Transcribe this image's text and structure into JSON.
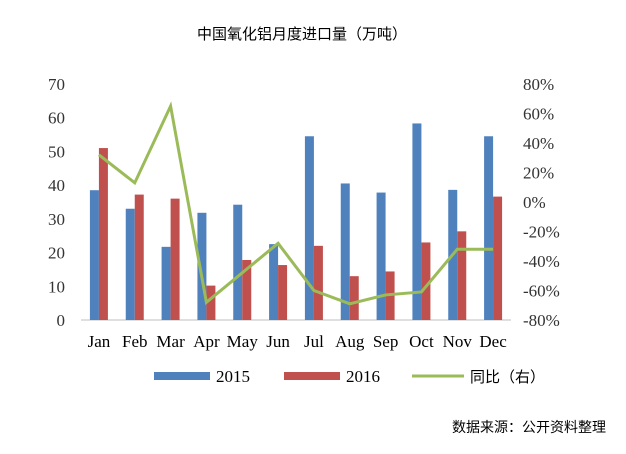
{
  "chart_data": {
    "type": "bar",
    "title": "中国氧化铝月度进口量（万吨）",
    "categories": [
      "Jan",
      "Feb",
      "Mar",
      "Apr",
      "May",
      "Jun",
      "Jul",
      "Aug",
      "Sep",
      "Oct",
      "Nov",
      "Dec"
    ],
    "series": [
      {
        "name": "2015",
        "type": "bar",
        "axis": "left",
        "color": "#4f81bd",
        "values": [
          38.5,
          33,
          21.7,
          31.8,
          34.2,
          22.5,
          54.5,
          40.5,
          37.8,
          58.3,
          38.6,
          54.5
        ]
      },
      {
        "name": "2016",
        "type": "bar",
        "axis": "left",
        "color": "#c0504d",
        "values": [
          51,
          37.2,
          36,
          10.2,
          17.8,
          16.3,
          22,
          13,
          14.4,
          23,
          26.3,
          36.6
        ]
      },
      {
        "name": "同比（右）",
        "type": "line",
        "axis": "right",
        "color": "#9bbb59",
        "values": [
          32,
          13,
          65,
          -68,
          -48,
          -28,
          -60,
          -69,
          -63,
          -61,
          -32,
          -32
        ]
      }
    ],
    "yleft": {
      "min": 0,
      "max": 70,
      "ticks": [
        "0",
        "10",
        "20",
        "30",
        "40",
        "50",
        "60",
        "70"
      ]
    },
    "yright": {
      "min": -80,
      "max": 80,
      "ticks": [
        "-80%",
        "-60%",
        "-40%",
        "-20%",
        "0%",
        "20%",
        "40%",
        "60%",
        "80%"
      ]
    },
    "legend": "bottom",
    "grid": false
  },
  "source": "数据来源：公开资料整理"
}
